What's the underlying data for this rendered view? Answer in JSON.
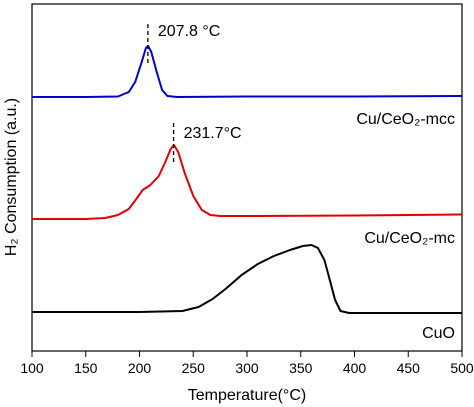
{
  "chart_data": {
    "type": "line",
    "xlabel": "Temperature(°C)",
    "ylabel": "H₂ Consumption (a.u.)",
    "xlim": [
      100,
      500
    ],
    "xticks": [
      "100",
      "150",
      "200",
      "250",
      "300",
      "350",
      "400",
      "450",
      "500"
    ],
    "yticks_shown": false,
    "series": [
      {
        "name": "Cu/CeO₂-mcc",
        "color": "#0000cc",
        "peak_label": "207.8 °C",
        "peak_x": 207.8,
        "points": [
          [
            100,
            97
          ],
          [
            150,
            97
          ],
          [
            180,
            96.5
          ],
          [
            190,
            92
          ],
          [
            196,
            82
          ],
          [
            202,
            62
          ],
          [
            206,
            48
          ],
          [
            208,
            46
          ],
          [
            211,
            52
          ],
          [
            216,
            72
          ],
          [
            221,
            90
          ],
          [
            226,
            96
          ],
          [
            235,
            97
          ],
          [
            300,
            96.5
          ],
          [
            400,
            96.5
          ],
          [
            500,
            96
          ]
        ]
      },
      {
        "name": "Cu/CeO₂-mc",
        "color": "#e00000",
        "peak_label": "231.7°C",
        "peak_x": 231.7,
        "points": [
          [
            100,
            219
          ],
          [
            150,
            219
          ],
          [
            168,
            218
          ],
          [
            180,
            215
          ],
          [
            190,
            209
          ],
          [
            197,
            199
          ],
          [
            203,
            190
          ],
          [
            210,
            185
          ],
          [
            218,
            176
          ],
          [
            224,
            162
          ],
          [
            229,
            149
          ],
          [
            232,
            145
          ],
          [
            236,
            152
          ],
          [
            242,
            173
          ],
          [
            250,
            196
          ],
          [
            258,
            210
          ],
          [
            266,
            215
          ],
          [
            275,
            216
          ],
          [
            300,
            216
          ],
          [
            400,
            215.5
          ],
          [
            500,
            214.5
          ]
        ]
      },
      {
        "name": "CuO",
        "color": "#000000",
        "points": [
          [
            100,
            312
          ],
          [
            200,
            312
          ],
          [
            240,
            311
          ],
          [
            255,
            307
          ],
          [
            268,
            299
          ],
          [
            280,
            289
          ],
          [
            295,
            275
          ],
          [
            310,
            264
          ],
          [
            325,
            256
          ],
          [
            340,
            250
          ],
          [
            352,
            246
          ],
          [
            360,
            245
          ],
          [
            366,
            248
          ],
          [
            372,
            260
          ],
          [
            377,
            280
          ],
          [
            382,
            300
          ],
          [
            387,
            311
          ],
          [
            395,
            313
          ],
          [
            420,
            313
          ],
          [
            500,
            313
          ]
        ]
      }
    ]
  }
}
